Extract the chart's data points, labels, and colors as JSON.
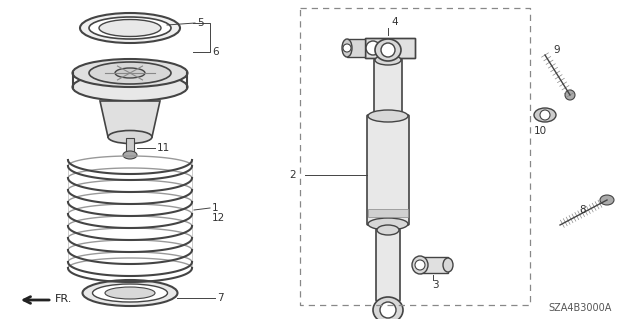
{
  "bg_color": "#ffffff",
  "line_color": "#444444",
  "text_color": "#333333",
  "diagram_code": "SZA4B3000A",
  "fig_w": 6.4,
  "fig_h": 3.19,
  "dpi": 100
}
